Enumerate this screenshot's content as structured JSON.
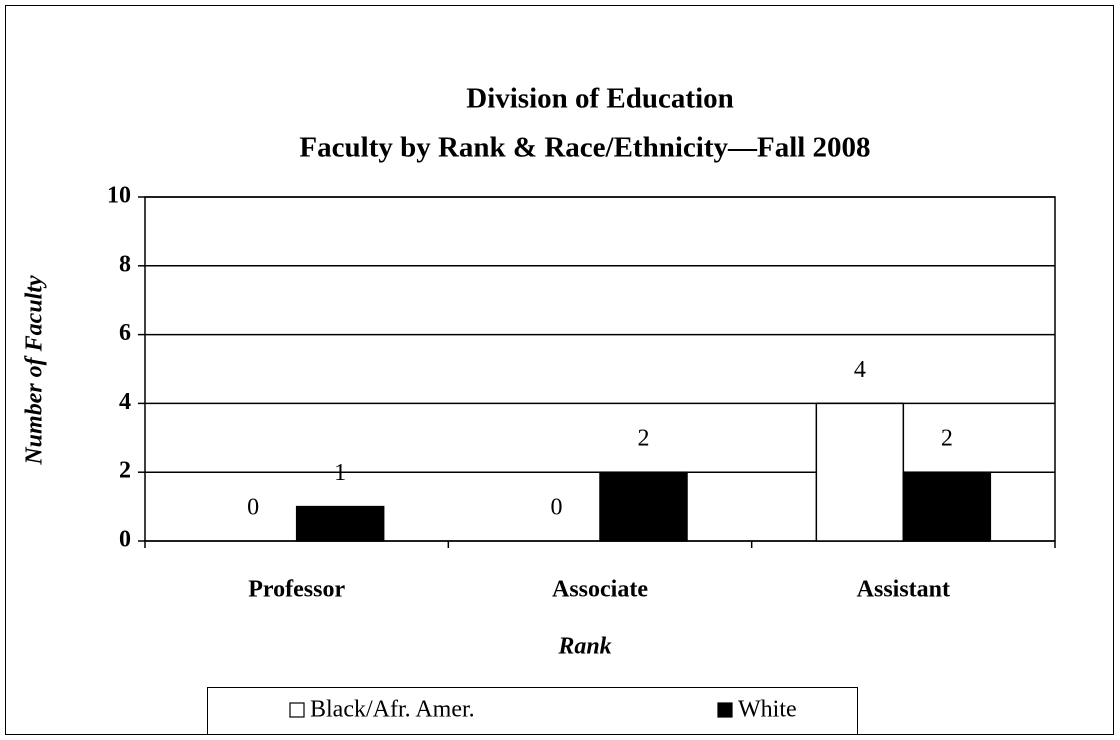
{
  "chart_data": {
    "type": "bar",
    "title": "Division of Education",
    "subtitle": "Faculty by Rank & Race/Ethnicity—Fall 2008",
    "x_label": "Rank",
    "y_label": "Number of Faculty",
    "categories": [
      "Professor",
      "Associate",
      "Assistant"
    ],
    "series": [
      {
        "name": "Black/Afr. Amer.",
        "color": "#ffffff",
        "values": [
          0,
          0,
          4
        ]
      },
      {
        "name": "White",
        "color": "#000000",
        "values": [
          1,
          2,
          2
        ]
      }
    ],
    "ylim": [
      0,
      10
    ],
    "yticks": [
      0,
      2,
      4,
      6,
      8,
      10
    ],
    "grid": true,
    "legend": "bottom"
  }
}
